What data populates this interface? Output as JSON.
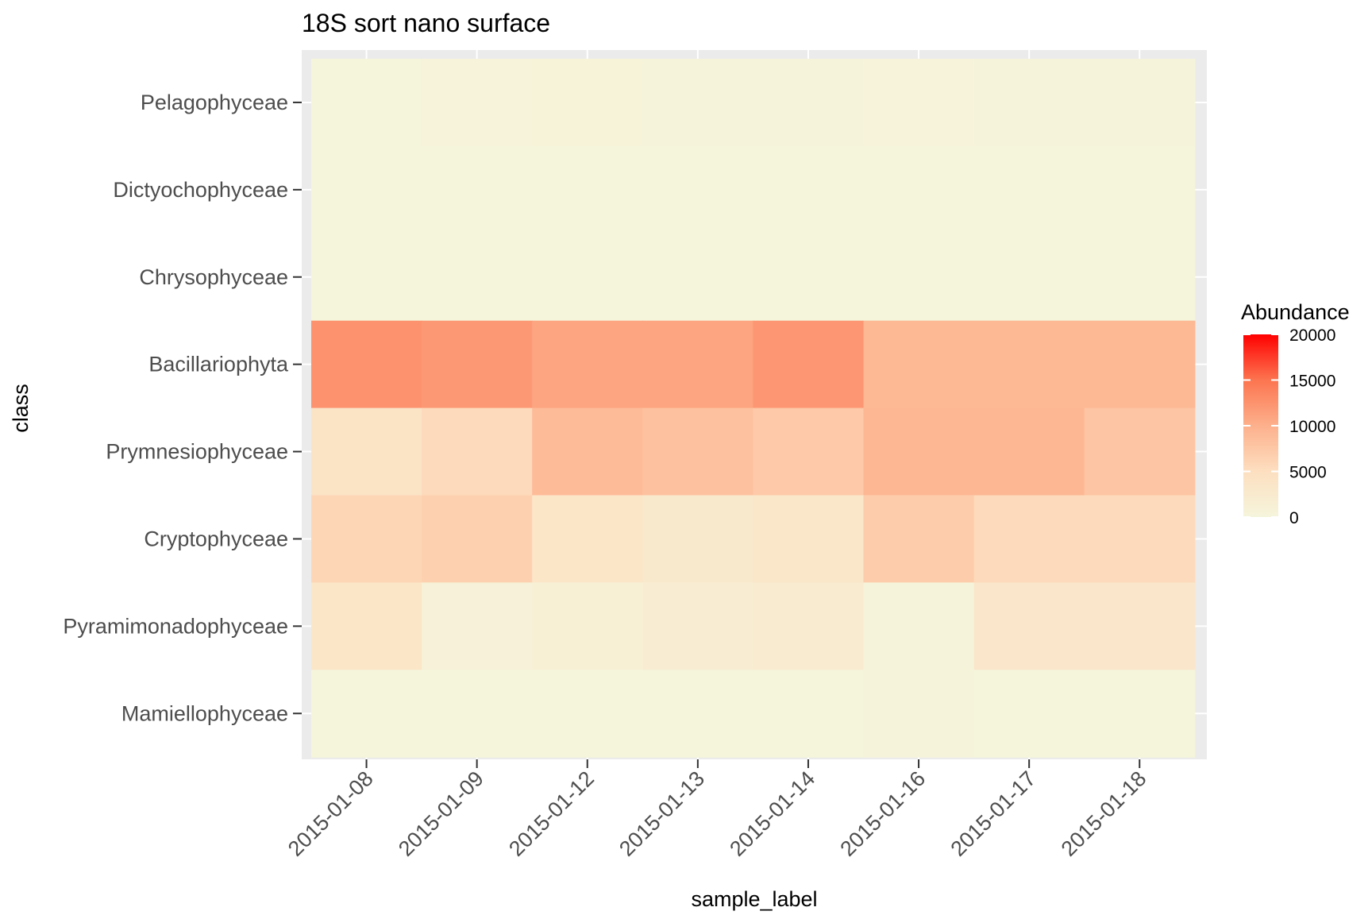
{
  "chart_data": {
    "type": "heatmap",
    "title": "18S sort nano surface",
    "xlabel": "sample_label",
    "ylabel": "class",
    "x": [
      "2015-01-08",
      "2015-01-09",
      "2015-01-12",
      "2015-01-13",
      "2015-01-14",
      "2015-01-16",
      "2015-01-17",
      "2015-01-18"
    ],
    "y": [
      "Pelagophyceae",
      "Dictyochophyceae",
      "Chrysophyceae",
      "Bacillariophyta",
      "Prymnesiophyceae",
      "Cryptophyceae",
      "Pyramimonadophyceae",
      "Mamiellophyceae"
    ],
    "values": [
      [
        100,
        350,
        450,
        250,
        300,
        350,
        200,
        200
      ],
      [
        50,
        50,
        50,
        50,
        50,
        100,
        100,
        50
      ],
      [
        50,
        50,
        50,
        50,
        50,
        50,
        50,
        50
      ],
      [
        12500,
        12000,
        11000,
        11000,
        12200,
        9200,
        9200,
        9200
      ],
      [
        4000,
        5500,
        8800,
        8200,
        7300,
        9300,
        9300,
        7800
      ],
      [
        6000,
        6500,
        3500,
        2800,
        3400,
        7000,
        5500,
        5500
      ],
      [
        3500,
        800,
        1200,
        1800,
        2300,
        200,
        3300,
        3300
      ],
      [
        100,
        100,
        100,
        100,
        100,
        150,
        100,
        100
      ]
    ],
    "legend": {
      "title": "Abundance",
      "ticks": [
        0,
        5000,
        10000,
        15000,
        20000
      ],
      "range": [
        0,
        20000
      ],
      "colors": [
        "#f5f5dc",
        "#ff0000"
      ],
      "position": "right"
    },
    "grid": true
  }
}
